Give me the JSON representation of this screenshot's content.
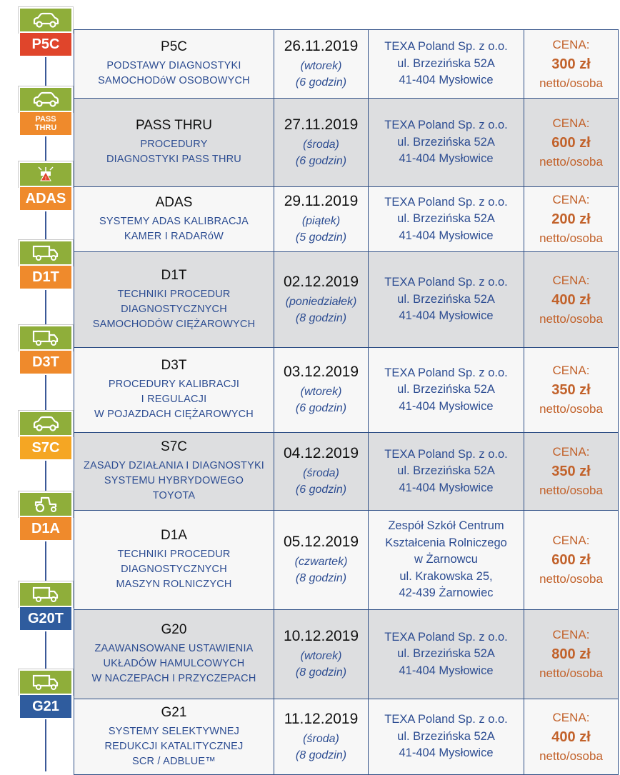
{
  "badges": [
    {
      "label": "P5C",
      "icon": "car-icon",
      "color": "#e0452b"
    },
    {
      "label": "PASS THRU",
      "label1": "PASS",
      "label2": "THRU",
      "icon": "car-icon",
      "color": "#ef8a2c"
    },
    {
      "label": "ADAS",
      "icon": "adas-icon",
      "color": "#ef8a2c"
    },
    {
      "label": "D1T",
      "icon": "truck-icon",
      "color": "#ef8a2c"
    },
    {
      "label": "D3T",
      "icon": "truck-icon",
      "color": "#ef8a2c"
    },
    {
      "label": "S7C",
      "icon": "car-icon",
      "color": "#f5a623"
    },
    {
      "label": "D1A",
      "icon": "tractor-icon",
      "color": "#ef8a2c"
    },
    {
      "label": "G20T",
      "icon": "truck-icon",
      "color": "#2f5c9e"
    },
    {
      "label": "G21",
      "icon": "truck-icon",
      "color": "#2f5c9e"
    }
  ],
  "rows": [
    {
      "code": "P5C",
      "desc": [
        "PODSTAWY DIAGNOSTYKI",
        "SAMOCHODóW OSOBOWYCH"
      ],
      "date": "26.11.2019",
      "day": "(wtorek)",
      "hours": "(6 godzin)",
      "loc": [
        "TEXA Poland Sp. z o.o.",
        "ul. Brzezińska 52A",
        "41-404 Mysłowice"
      ],
      "cena": "CENA:",
      "price": "300 zł",
      "netto": "netto/osoba"
    },
    {
      "code": "PASS THRU",
      "desc": [
        "PROCEDURY",
        "DIAGNOSTYKI PASS THRU"
      ],
      "date": "27.11.2019",
      "day": "(środa)",
      "hours": "(6 godzin)",
      "loc": [
        "TEXA Poland Sp. z o.o.",
        "ul. Brzezińska 52A",
        "41-404 Mysłowice"
      ],
      "cena": "CENA:",
      "price": "600 zł",
      "netto": "netto/osoba"
    },
    {
      "code": "ADAS",
      "desc": [
        "SYSTEMY ADAS KALIBRACJA",
        "KAMER I RADARóW"
      ],
      "date": "29.11.2019",
      "day": "(piątek)",
      "hours": "(5 godzin)",
      "loc": [
        "TEXA Poland Sp. z o.o.",
        "ul. Brzezińska 52A",
        "41-404 Mysłowice"
      ],
      "cena": "CENA:",
      "price": "200 zł",
      "netto": "netto/osoba"
    },
    {
      "code": "D1T",
      "desc": [
        "TECHNIKI PROCEDUR",
        "DIAGNOSTYCZNYCH",
        "SAMOCHODÓW CIĘŻAROWYCH"
      ],
      "date": "02.12.2019",
      "day": "(poniedziałek)",
      "hours": "(8 godzin)",
      "loc": [
        "TEXA Poland Sp. z o.o.",
        "ul. Brzezińska 52A",
        "41-404 Mysłowice"
      ],
      "cena": "CENA:",
      "price": "400 zł",
      "netto": "netto/osoba"
    },
    {
      "code": "D3T",
      "desc": [
        "PROCEDURY KALIBRACJI",
        "I REGULACJI",
        "W POJAZDACH CIĘŻAROWYCH"
      ],
      "date": "03.12.2019",
      "day": "(wtorek)",
      "hours": "(6 godzin)",
      "loc": [
        "TEXA Poland Sp. z o.o.",
        "ul. Brzezińska 52A",
        "41-404 Mysłowice"
      ],
      "cena": "CENA:",
      "price": "350 zł",
      "netto": "netto/osoba"
    },
    {
      "code": "S7C",
      "desc": [
        "ZASADY DZIAŁANIA I DIAGNOSTYKI",
        "SYSTEMU HYBRYDOWEGO",
        "TOYOTA"
      ],
      "date": "04.12.2019",
      "day": "(środa)",
      "hours": "(6 godzin)",
      "loc": [
        "TEXA Poland Sp. z o.o.",
        "ul. Brzezińska 52A",
        "41-404 Mysłowice"
      ],
      "cena": "CENA:",
      "price": "350 zł",
      "netto": "netto/osoba"
    },
    {
      "code": "D1A",
      "desc": [
        "TECHNIKI PROCEDUR DIAGNOSTYCZNYCH",
        "MASZYN ROLNICZYCH"
      ],
      "date": "05.12.2019",
      "day": "(czwartek)",
      "hours": "(8 godzin)",
      "loc": [
        "Zespół Szkół Centrum",
        "Kształcenia Rolniczego",
        "w Żarnowcu",
        "ul. Krakowska 25,",
        "42-439 Żarnowiec"
      ],
      "cena": "CENA:",
      "price": "600 zł",
      "netto": "netto/osoba"
    },
    {
      "code": "G20",
      "desc": [
        "ZAAWANSOWANE USTAWIENIA",
        "UKŁADÓW HAMULCOWYCH",
        "W NACZEPACH I PRZYCZEPACH"
      ],
      "date": "10.12.2019",
      "day": "(wtorek)",
      "hours": "(8 godzin)",
      "loc": [
        "TEXA Poland Sp. z o.o.",
        "ul. Brzezińska 52A",
        "41-404 Mysłowice"
      ],
      "cena": "CENA:",
      "price": "800 zł",
      "netto": "netto/osoba"
    },
    {
      "code": "G21",
      "desc": [
        "SYSTEMY SELEKTYWNEJ",
        "REDUKCJI KATALITYCZNEJ",
        "SCR / ADBLUE™"
      ],
      "date": "11.12.2019",
      "day": "(środa)",
      "hours": "(8 godzin)",
      "loc": [
        "TEXA Poland Sp. z o.o.",
        "ul. Brzezińska 52A",
        "41-404 Mysłowice"
      ],
      "cena": "CENA:",
      "price": "400 zł",
      "netto": "netto/osoba"
    }
  ]
}
